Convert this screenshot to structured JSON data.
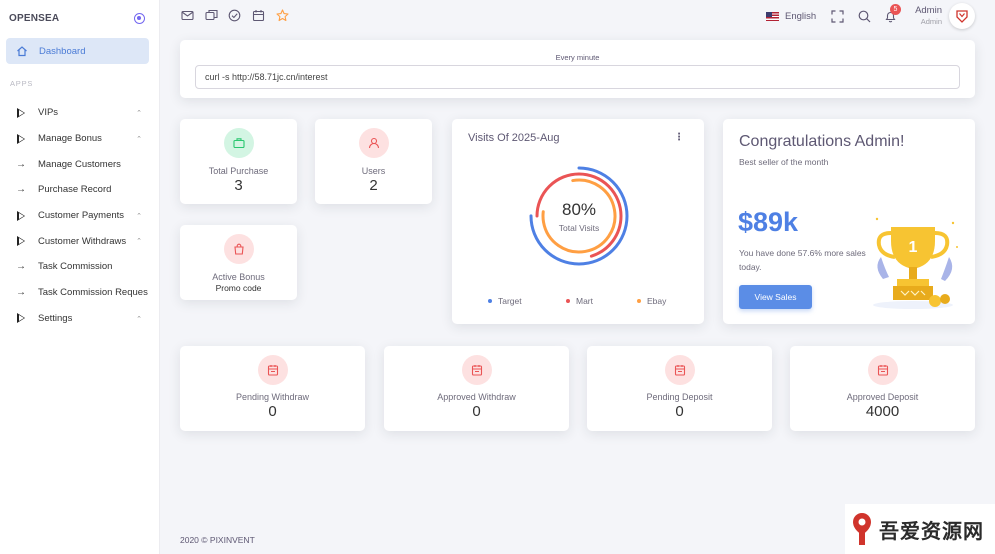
{
  "brand": {
    "name": "OPENSEA"
  },
  "sidebar": {
    "active": {
      "label": "Dashboard"
    },
    "section_label": "APPS",
    "items": [
      {
        "label": "VIPs",
        "icon": "triangle-icon",
        "chevron": true
      },
      {
        "label": "Manage Bonus",
        "icon": "triangle-icon",
        "chevron": true
      },
      {
        "label": "Manage Customers",
        "icon": "arrow-icon",
        "chevron": false
      },
      {
        "label": "Purchase Record",
        "icon": "arrow-icon",
        "chevron": false
      },
      {
        "label": "Customer Payments",
        "icon": "triangle-icon",
        "chevron": true
      },
      {
        "label": "Customer Withdraws",
        "icon": "triangle-icon",
        "chevron": true
      },
      {
        "label": "Task Commission",
        "icon": "arrow-icon",
        "chevron": false
      },
      {
        "label": "Task Commission Reques",
        "icon": "arrow-icon",
        "chevron": false
      },
      {
        "label": "Settings",
        "icon": "triangle-icon",
        "chevron": true
      }
    ]
  },
  "topbar": {
    "language": "English",
    "notifications_count": "5",
    "user": {
      "name": "Admin",
      "role": "Admin"
    }
  },
  "cron": {
    "title": "Every minute",
    "command": "curl -s http://58.71jc.cn/interest"
  },
  "stats": {
    "total_purchase": {
      "label": "Total Purchase",
      "value": "3"
    },
    "users": {
      "label": "Users",
      "value": "2"
    },
    "active_bonus": {
      "label": "Active Bonus",
      "sub": "Promo code"
    }
  },
  "visits": {
    "title": "Visits Of 2025-Aug",
    "center_value": "80%",
    "center_label": "Total Visits",
    "legend": [
      {
        "name": "Target",
        "color": "#4e80e4"
      },
      {
        "name": "Mart",
        "color": "#ea5455"
      },
      {
        "name": "Ebay",
        "color": "#ff9f43"
      }
    ]
  },
  "congrats": {
    "title": "Congratulations Admin!",
    "subtitle": "Best seller of the month",
    "amount": "$89k",
    "description": "You have done 57.6% more sales today.",
    "button": "View Sales"
  },
  "bottom_stats": [
    {
      "label": "Pending Withdraw",
      "value": "0"
    },
    {
      "label": "Approved Withdraw",
      "value": "0"
    },
    {
      "label": "Pending Deposit",
      "value": "0"
    },
    {
      "label": "Approved Deposit",
      "value": "4000"
    }
  ],
  "footer": "2020 © PIXINVENT",
  "watermark": {
    "text": "吾爱资源网"
  },
  "colors": {
    "primary": "#4e80e4",
    "danger": "#ea5455",
    "warning": "#ff9f43",
    "success": "#28c76f"
  }
}
